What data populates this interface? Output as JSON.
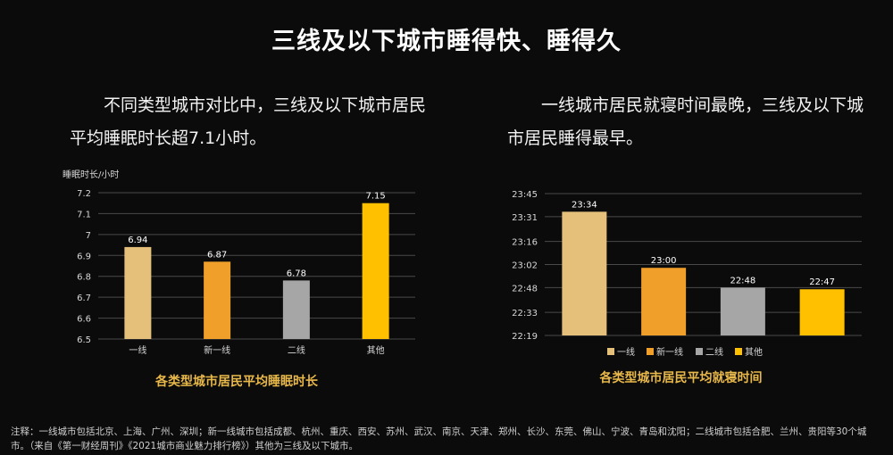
{
  "title": "三线及以下城市睡得快、睡得久",
  "left_desc": "不同类型城市对比中，三线及以下城市居民平均睡眠时长超7.1小时。",
  "right_desc": "一线城市居民就寝时间最晚，三线及以下城市居民睡得最早。",
  "note": "注释：一线城市包括北京、上海、广州、深圳；新一线城市包括成都、杭州、重庆、西安、苏州、武汉、南京、天津、郑州、长沙、东莞、佛山、宁波、青岛和沈阳；二线城市包括合肥、兰州、贵阳等30个城市。（来自《第一财经周刊》《2021城市商业魅力排行榜》）其他为三线及以下城市。",
  "chart_data": [
    {
      "type": "bar",
      "title": "各类型城市居民平均睡眠时长",
      "ylabel": "睡眠时长/小时",
      "categories": [
        "一线",
        "新一线",
        "二线",
        "其他"
      ],
      "values": [
        6.94,
        6.87,
        6.78,
        7.15
      ],
      "value_labels": [
        "6.94",
        "6.87",
        "6.78",
        "7.15"
      ],
      "colors": [
        "#e4c07a",
        "#f0a02a",
        "#a6a6a6",
        "#ffc000"
      ],
      "ylim": [
        6.5,
        7.2
      ],
      "yticks": [
        "6.5",
        "6.6",
        "6.7",
        "6.8",
        "6.9",
        "7",
        "7.1",
        "7.2"
      ],
      "grid": true
    },
    {
      "type": "bar",
      "title": "各类型城市居民平均就寝时间",
      "categories": [
        "一线",
        "新一线",
        "二线",
        "其他"
      ],
      "values": [
        "23:34",
        "23:00",
        "22:48",
        "22:47"
      ],
      "value_labels": [
        "23:34",
        "23:00",
        "22:48",
        "22:47"
      ],
      "colors": [
        "#e4c07a",
        "#f0a02a",
        "#a6a6a6",
        "#ffc000"
      ],
      "ylim": [
        "22:19",
        "23:45"
      ],
      "yticks": [
        "22:19",
        "22:33",
        "22:48",
        "23:02",
        "23:16",
        "23:31",
        "23:45"
      ],
      "legend": "bottom",
      "grid": true
    }
  ]
}
